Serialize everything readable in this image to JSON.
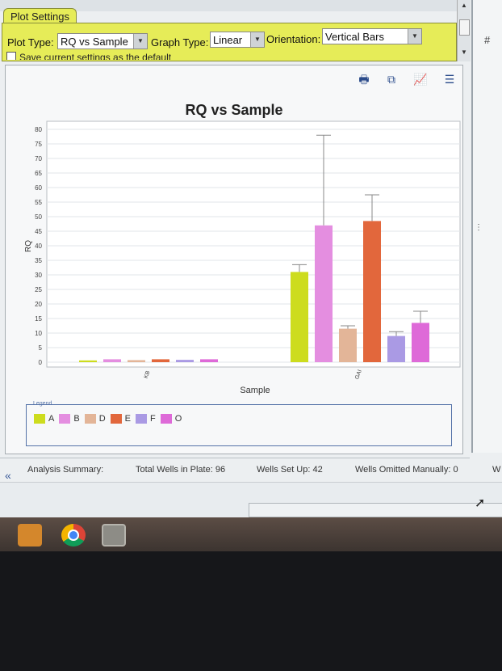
{
  "panel": {
    "tab_label": "Plot Settings",
    "plot_type_label": "Plot Type:",
    "plot_type_value": "RQ vs Sample",
    "graph_type_label": "Graph Type:",
    "graph_type_value": "Linear",
    "orientation_label": "Orientation:",
    "orientation_value": "Vertical Bars",
    "checkbox_label": "Save current settings as the default"
  },
  "right_panel": {
    "mark": "#"
  },
  "chart_data": {
    "type": "bar",
    "title": "RQ vs Sample",
    "xlabel": "Sample",
    "ylabel": "RQ",
    "ylim": [
      0,
      80
    ],
    "yticks": [
      0,
      5,
      10,
      15,
      20,
      25,
      30,
      35,
      40,
      45,
      50,
      55,
      60,
      65,
      70,
      75,
      80
    ],
    "categories": [
      "KB",
      "GAI"
    ],
    "series": [
      {
        "name": "A",
        "color": "#cddc1e",
        "values": [
          0.6,
          31.0
        ],
        "err": [
          0,
          2.5
        ]
      },
      {
        "name": "B",
        "color": "#e48ee0",
        "values": [
          1.0,
          47.0
        ],
        "err": [
          0,
          31
        ]
      },
      {
        "name": "D",
        "color": "#e3b598",
        "values": [
          0.7,
          11.5
        ],
        "err": [
          0,
          1
        ]
      },
      {
        "name": "E",
        "color": "#e2673c",
        "values": [
          1.0,
          48.5
        ],
        "err": [
          0,
          9
        ]
      },
      {
        "name": "F",
        "color": "#aa9ae4",
        "values": [
          0.8,
          9.0
        ],
        "err": [
          0,
          1.5
        ]
      },
      {
        "name": "O",
        "color": "#de6ad8",
        "values": [
          1.0,
          13.5
        ],
        "err": [
          0,
          4
        ]
      }
    ],
    "legend_title": "Legend",
    "grid": true,
    "legend_position": "bottom"
  },
  "analysis": {
    "summary_label": "Analysis Summary:",
    "total_wells": "Total Wells in Plate: 96",
    "wells_setup": "Wells Set Up: 42",
    "wells_omitted": "Wells Omitted Manually: 0",
    "cut_text": "W"
  }
}
